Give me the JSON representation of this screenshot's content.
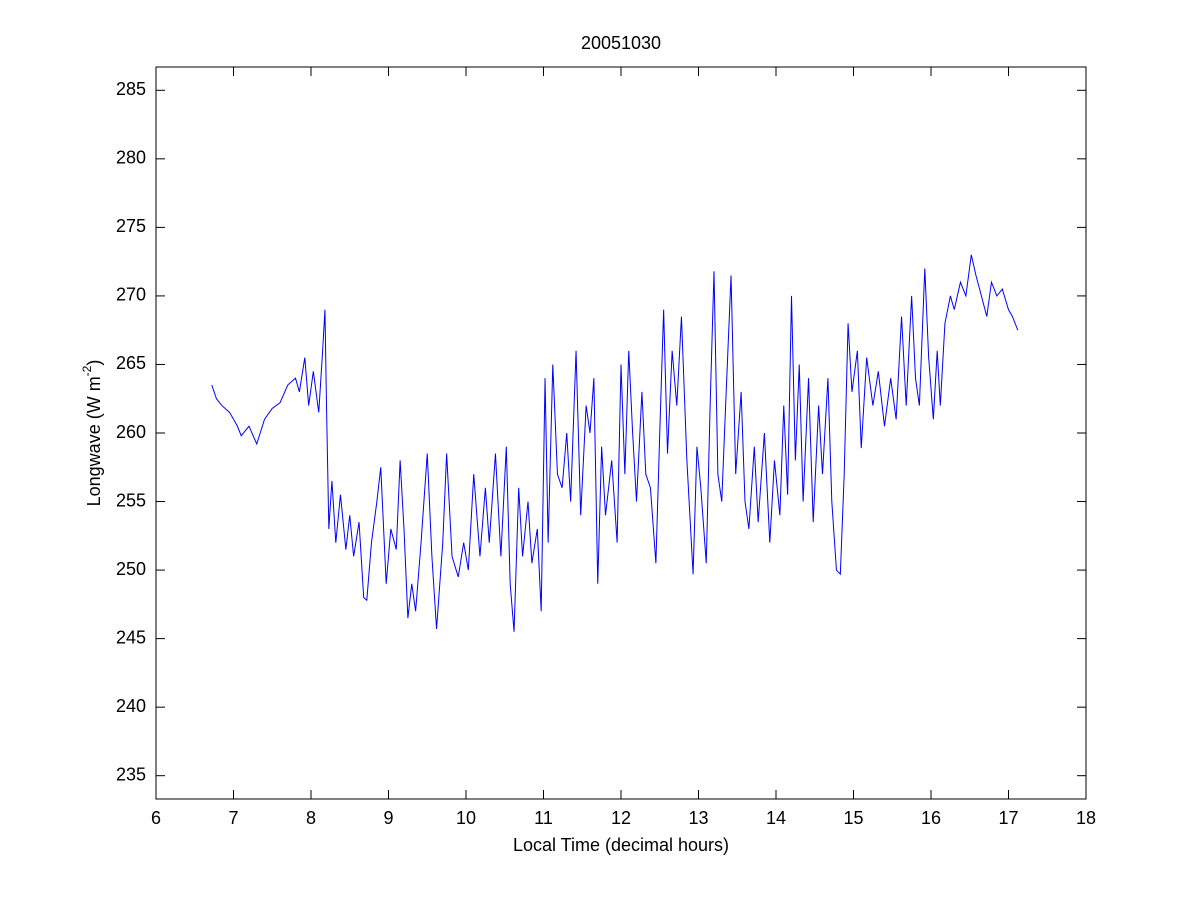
{
  "chart_data": {
    "type": "line",
    "title": "20051030",
    "xlabel": "Local Time (decimal hours)",
    "ylabel": [
      "Longwave (W m",
      "-2",
      ")"
    ],
    "xlim": [
      6,
      18
    ],
    "xticks": [
      6,
      7,
      8,
      9,
      10,
      11,
      12,
      13,
      14,
      15,
      16,
      17,
      18
    ],
    "ylim": [
      233.3,
      286.7
    ],
    "yticks": [
      235,
      240,
      245,
      250,
      255,
      260,
      265,
      270,
      275,
      280,
      285
    ],
    "grid": false,
    "series": [
      {
        "color": "#0000ff",
        "x": [
          6.72,
          6.78,
          6.85,
          6.95,
          7.05,
          7.1,
          7.2,
          7.3,
          7.4,
          7.5,
          7.6,
          7.7,
          7.8,
          7.85,
          7.92,
          7.97,
          8.03,
          8.1,
          8.15,
          8.18,
          8.2,
          8.23,
          8.27,
          8.32,
          8.38,
          8.45,
          8.5,
          8.55,
          8.62,
          8.68,
          8.72,
          8.78,
          8.85,
          8.9,
          8.97,
          9.03,
          9.1,
          9.15,
          9.2,
          9.25,
          9.3,
          9.35,
          9.42,
          9.5,
          9.56,
          9.62,
          9.7,
          9.75,
          9.82,
          9.9,
          9.97,
          10.03,
          10.1,
          10.18,
          10.25,
          10.3,
          10.38,
          10.45,
          10.52,
          10.57,
          10.62,
          10.68,
          10.73,
          10.8,
          10.85,
          10.92,
          10.97,
          11.02,
          11.06,
          11.12,
          11.18,
          11.24,
          11.3,
          11.35,
          11.42,
          11.48,
          11.55,
          11.6,
          11.65,
          11.7,
          11.75,
          11.8,
          11.88,
          11.95,
          12.0,
          12.05,
          12.1,
          12.15,
          12.2,
          12.27,
          12.32,
          12.38,
          12.45,
          12.5,
          12.55,
          12.6,
          12.66,
          12.72,
          12.78,
          12.85,
          12.93,
          12.98,
          13.03,
          13.1,
          13.15,
          13.2,
          13.25,
          13.3,
          13.35,
          13.42,
          13.48,
          13.55,
          13.6,
          13.65,
          13.72,
          13.77,
          13.85,
          13.92,
          13.98,
          14.05,
          14.1,
          14.15,
          14.2,
          14.25,
          14.3,
          14.35,
          14.42,
          14.48,
          14.55,
          14.6,
          14.67,
          14.72,
          14.78,
          14.83,
          14.88,
          14.93,
          14.98,
          15.05,
          15.1,
          15.17,
          15.25,
          15.32,
          15.4,
          15.48,
          15.55,
          15.62,
          15.68,
          15.75,
          15.8,
          15.85,
          15.92,
          15.97,
          16.03,
          16.08,
          16.12,
          16.18,
          16.25,
          16.3,
          16.38,
          16.45,
          16.52,
          16.58,
          16.65,
          16.72,
          16.78,
          16.85,
          16.92,
          17.0,
          17.05,
          17.12
        ],
        "values": [
          263.5,
          262.5,
          262,
          261.5,
          260.5,
          259.8,
          260.5,
          259.2,
          261,
          261.8,
          262.2,
          263.5,
          264,
          263,
          265.5,
          262,
          264.5,
          261.5,
          266,
          269,
          262,
          253,
          256.5,
          252,
          255.5,
          251.5,
          254,
          251,
          253.5,
          248,
          247.8,
          252,
          255,
          257.5,
          249,
          253,
          251.5,
          258,
          253,
          246.5,
          249,
          247,
          252,
          258.5,
          251,
          245.7,
          252,
          258.5,
          251,
          249.5,
          252,
          250,
          257,
          251,
          256,
          252,
          258.5,
          251,
          259,
          249,
          245.5,
          256,
          251,
          255,
          250.5,
          253,
          247,
          264,
          252,
          265,
          257,
          256,
          260,
          255,
          266,
          254,
          262,
          260,
          264,
          249,
          259,
          254,
          258,
          252,
          265,
          257,
          266,
          260,
          255,
          263,
          257,
          256,
          250.5,
          260,
          269,
          258.5,
          266,
          262,
          268.5,
          258,
          249.7,
          259,
          256,
          250.5,
          262,
          271.8,
          257,
          255,
          262,
          271.5,
          257,
          263,
          255,
          253,
          259,
          253.5,
          260,
          252,
          258,
          254,
          262,
          255.5,
          270,
          258,
          265,
          255,
          264,
          253.5,
          262,
          257,
          264,
          255,
          250,
          249.7,
          257,
          268,
          263,
          266,
          258.9,
          265.5,
          262,
          264.5,
          260.5,
          264,
          261,
          268.5,
          262,
          270,
          264,
          262,
          272,
          265.5,
          261,
          266,
          262,
          268,
          270,
          269,
          271,
          270,
          273,
          271.5,
          270,
          268.5,
          271,
          270,
          270.5,
          269,
          268.5,
          267.5
        ]
      }
    ]
  }
}
